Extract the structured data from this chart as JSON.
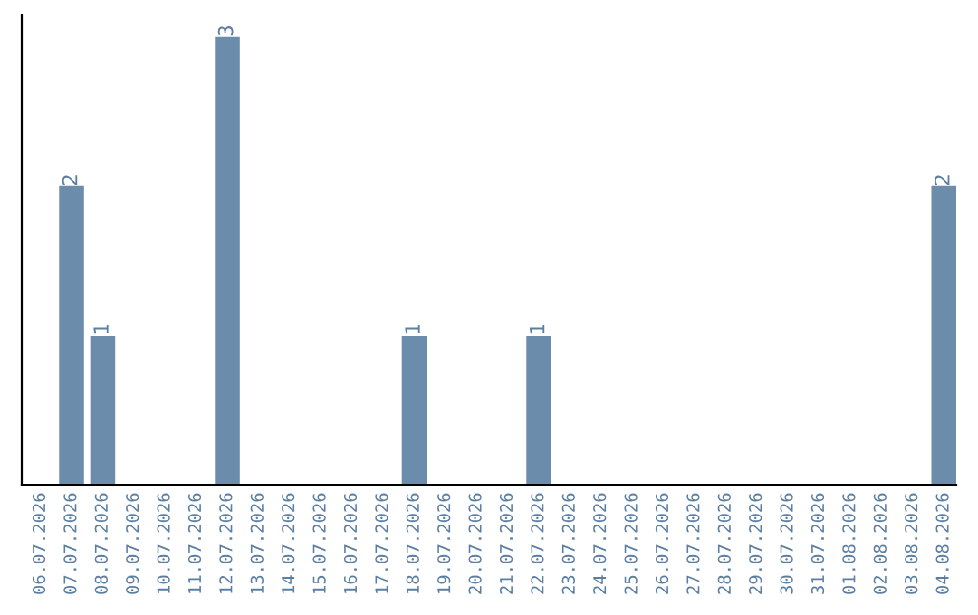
{
  "chart_data": {
    "type": "bar",
    "categories": [
      "06.07.2026",
      "07.07.2026",
      "08.07.2026",
      "09.07.2026",
      "10.07.2026",
      "11.07.2026",
      "12.07.2026",
      "13.07.2026",
      "14.07.2026",
      "15.07.2026",
      "16.07.2026",
      "17.07.2026",
      "18.07.2026",
      "19.07.2026",
      "20.07.2026",
      "21.07.2026",
      "22.07.2026",
      "23.07.2026",
      "24.07.2026",
      "25.07.2026",
      "26.07.2026",
      "27.07.2026",
      "28.07.2026",
      "29.07.2026",
      "30.07.2026",
      "31.07.2026",
      "01.08.2026",
      "02.08.2026",
      "03.08.2026",
      "04.08.2026"
    ],
    "values": [
      0,
      2,
      1,
      0,
      0,
      0,
      3,
      0,
      0,
      0,
      0,
      0,
      1,
      0,
      0,
      0,
      1,
      0,
      0,
      0,
      0,
      0,
      0,
      0,
      0,
      0,
      0,
      0,
      0,
      2
    ],
    "value_labels": [
      null,
      "2",
      "1",
      null,
      null,
      null,
      "3",
      null,
      null,
      null,
      null,
      null,
      "1",
      null,
      null,
      null,
      "1",
      null,
      null,
      null,
      null,
      null,
      null,
      null,
      null,
      null,
      null,
      null,
      null,
      "2"
    ],
    "color": "#6b8cab",
    "ylim": [
      0,
      3.15
    ],
    "tick_labels": "x",
    "grid": false,
    "legend": false
  }
}
